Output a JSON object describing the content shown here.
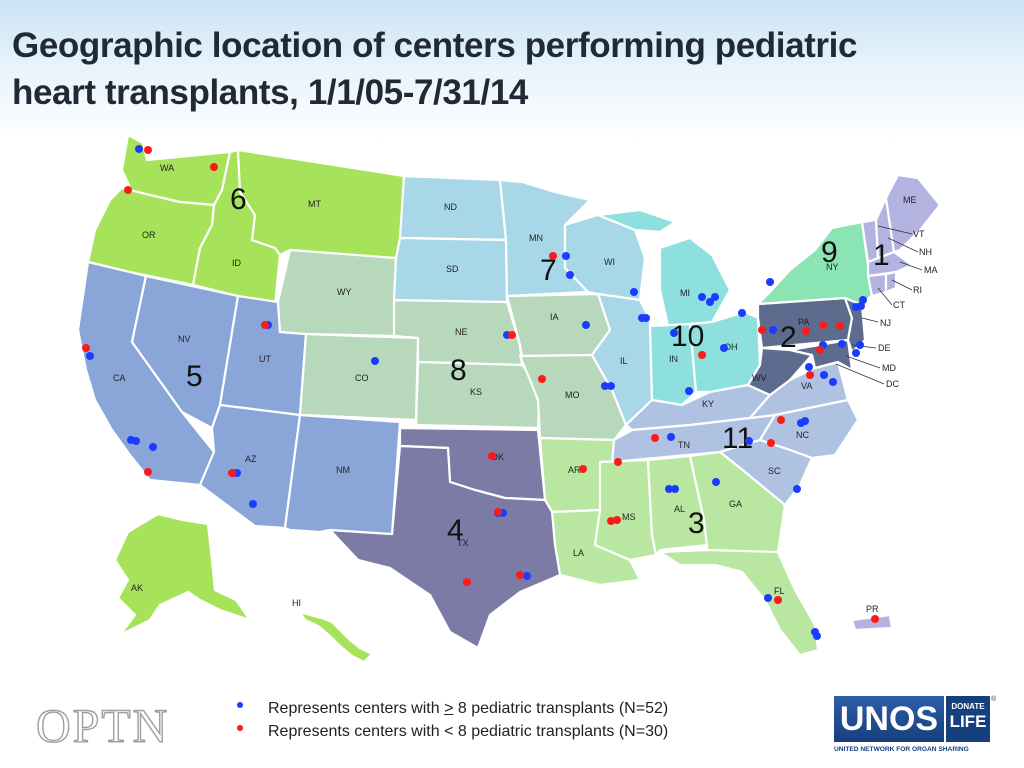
{
  "title": {
    "line1": "Geographic location of centers performing pediatric",
    "line2": "heart transplants, 1/1/05-7/31/14"
  },
  "colors": {
    "region_1": "#b3b3e2",
    "region_2": "#5d6b8f",
    "region_3": "#b9e6a0",
    "region_4": "#7b7ba6",
    "region_5": "#8aa6d8",
    "region_6": "#a6e35a",
    "region_7": "#a8d8e8",
    "region_8": "#b8d8bc",
    "region_9": "#8ae4b4",
    "region_10": "#8ee0de",
    "region_11": "#afc2e2",
    "large_center_dot": "#1a3cff",
    "small_center_dot": "#ff1a1a"
  },
  "states": {
    "WA": "WA",
    "OR": "OR",
    "ID": "ID",
    "MT": "MT",
    "WY": "WY",
    "CA": "CA",
    "NV": "NV",
    "UT": "UT",
    "AZ": "AZ",
    "CO": "CO",
    "NM": "NM",
    "ND": "ND",
    "SD": "SD",
    "NE": "NE",
    "KS": "KS",
    "OK": "OK",
    "TX": "TX",
    "MN": "MN",
    "IA": "IA",
    "MO": "MO",
    "AR": "AR",
    "LA": "LA",
    "WI": "WI",
    "IL": "IL",
    "MI": "MI",
    "IN": "IN",
    "OH": "OH",
    "KY": "KY",
    "TN": "TN",
    "MS": "MS",
    "AL": "AL",
    "GA": "GA",
    "FL": "FL",
    "SC": "SC",
    "NC": "NC",
    "VA": "VA",
    "WV": "WV",
    "PA": "PA",
    "NY": "NY",
    "NJ": "NJ",
    "DE": "DE",
    "MD": "MD",
    "DC": "DC",
    "CT": "CT",
    "RI": "RI",
    "MA": "MA",
    "NH": "NH",
    "VT": "VT",
    "ME": "ME",
    "AK": "AK",
    "HI": "HI",
    "PR": "PR"
  },
  "regions": {
    "r1": "1",
    "r2": "2",
    "r3": "3",
    "r4": "4",
    "r5": "5",
    "r6": "6",
    "r7": "7",
    "r8": "8",
    "r9": "9",
    "r10": "10",
    "r11": "11"
  },
  "legend": {
    "large": {
      "prefix": "Represents centers with ",
      "symbol": ">",
      "suffix": " 8 pediatric transplants (N=52)"
    },
    "small": {
      "text": "Represents centers with < 8 pediatric transplants (N=30)"
    }
  },
  "logos": {
    "optn": "OPTN",
    "unos": "UNOS",
    "donate": "DONATE",
    "life": "LIFE",
    "unos_sub": "UNITED NETWORK FOR ORGAN SHARING",
    "registered": "®"
  }
}
